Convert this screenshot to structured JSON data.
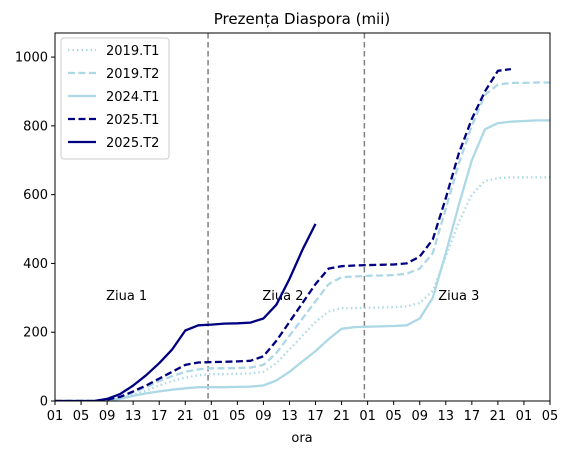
{
  "chart_data": {
    "type": "line",
    "title": "Prezența Diaspora (mii)",
    "xlabel": "ora",
    "ylabel": "",
    "x_unit": "hours from Day 1 01:00",
    "xlim": [
      0,
      76
    ],
    "ylim": [
      0,
      1070
    ],
    "yticks": [
      0,
      200,
      400,
      600,
      800,
      1000
    ],
    "xtick_hours": [
      0,
      4,
      8,
      12,
      16,
      20,
      24,
      28,
      32,
      36,
      40,
      44,
      48,
      52,
      56,
      60,
      64,
      68,
      72,
      76
    ],
    "xtick_labels": [
      "01",
      "05",
      "09",
      "13",
      "17",
      "21",
      "01",
      "05",
      "09",
      "13",
      "17",
      "21",
      "01",
      "05",
      "09",
      "13",
      "17",
      "21",
      "01",
      "05"
    ],
    "day_separators": [
      23.5,
      47.5
    ],
    "day_labels": [
      {
        "text": "Ziua 1",
        "x": 11,
        "y": 305
      },
      {
        "text": "Ziua 2",
        "x": 35,
        "y": 305
      },
      {
        "text": "Ziua 3",
        "x": 62,
        "y": 305
      }
    ],
    "legend_position": "top-left",
    "series": [
      {
        "name": "2019.T1",
        "color": "#add8e6",
        "style": "dotted",
        "x": [
          0,
          6,
          8,
          10,
          12,
          14,
          16,
          18,
          20,
          22,
          24,
          26,
          28,
          30,
          32,
          34,
          36,
          38,
          40,
          42,
          44,
          46,
          48,
          50,
          52,
          54,
          56,
          58,
          60,
          62,
          64,
          66,
          68,
          70,
          72,
          74,
          76
        ],
        "y": [
          0,
          0,
          3,
          8,
          18,
          30,
          45,
          58,
          68,
          75,
          78,
          78,
          79,
          80,
          85,
          110,
          150,
          190,
          230,
          260,
          270,
          270,
          271,
          272,
          273,
          275,
          285,
          320,
          420,
          520,
          600,
          640,
          648,
          650,
          650,
          650,
          650
        ]
      },
      {
        "name": "2019.T2",
        "color": "#add8e6",
        "style": "dashed",
        "x": [
          0,
          6,
          8,
          10,
          12,
          14,
          16,
          18,
          20,
          22,
          24,
          26,
          28,
          30,
          32,
          34,
          36,
          38,
          40,
          42,
          44,
          46,
          48,
          50,
          52,
          54,
          56,
          58,
          60,
          62,
          64,
          66,
          68,
          70,
          72,
          74,
          76
        ],
        "y": [
          0,
          0,
          3,
          10,
          25,
          40,
          58,
          72,
          85,
          92,
          95,
          95,
          96,
          97,
          105,
          140,
          190,
          240,
          290,
          340,
          360,
          362,
          364,
          365,
          366,
          370,
          385,
          430,
          560,
          690,
          800,
          890,
          920,
          925,
          925,
          926,
          926
        ]
      },
      {
        "name": "2024.T1",
        "color": "#add8e6",
        "style": "solid",
        "x": [
          0,
          6,
          8,
          10,
          12,
          14,
          16,
          18,
          20,
          22,
          24,
          26,
          28,
          30,
          32,
          34,
          36,
          38,
          40,
          42,
          44,
          46,
          48,
          50,
          52,
          54,
          56,
          58,
          60,
          62,
          64,
          66,
          68,
          70,
          72,
          74,
          76
        ],
        "y": [
          0,
          0,
          2,
          6,
          15,
          22,
          28,
          33,
          37,
          40,
          40,
          40,
          41,
          42,
          45,
          60,
          85,
          115,
          145,
          180,
          210,
          215,
          216,
          217,
          218,
          220,
          240,
          300,
          430,
          570,
          700,
          790,
          808,
          812,
          814,
          816,
          816
        ]
      },
      {
        "name": "2025.T1",
        "color": "#000080",
        "style": "dashed",
        "x": [
          0,
          6,
          8,
          10,
          12,
          14,
          16,
          18,
          20,
          22,
          24,
          26,
          28,
          30,
          32,
          34,
          36,
          38,
          40,
          42,
          44,
          46,
          48,
          50,
          52,
          54,
          56,
          58,
          60,
          62,
          64,
          66,
          68,
          70
        ],
        "y": [
          0,
          0,
          4,
          12,
          28,
          45,
          65,
          85,
          105,
          112,
          113,
          114,
          115,
          117,
          130,
          175,
          230,
          285,
          340,
          385,
          392,
          394,
          395,
          396,
          397,
          400,
          420,
          470,
          590,
          720,
          820,
          900,
          960,
          965
        ]
      },
      {
        "name": "2025.T2",
        "color": "#000080",
        "style": "solid",
        "x": [
          0,
          6,
          8,
          10,
          12,
          14,
          16,
          18,
          20,
          22,
          24,
          26,
          28,
          30,
          32,
          34,
          36,
          38,
          40
        ],
        "y": [
          0,
          0,
          6,
          20,
          45,
          75,
          110,
          150,
          205,
          220,
          222,
          225,
          226,
          228,
          240,
          280,
          355,
          440,
          515
        ]
      }
    ]
  }
}
